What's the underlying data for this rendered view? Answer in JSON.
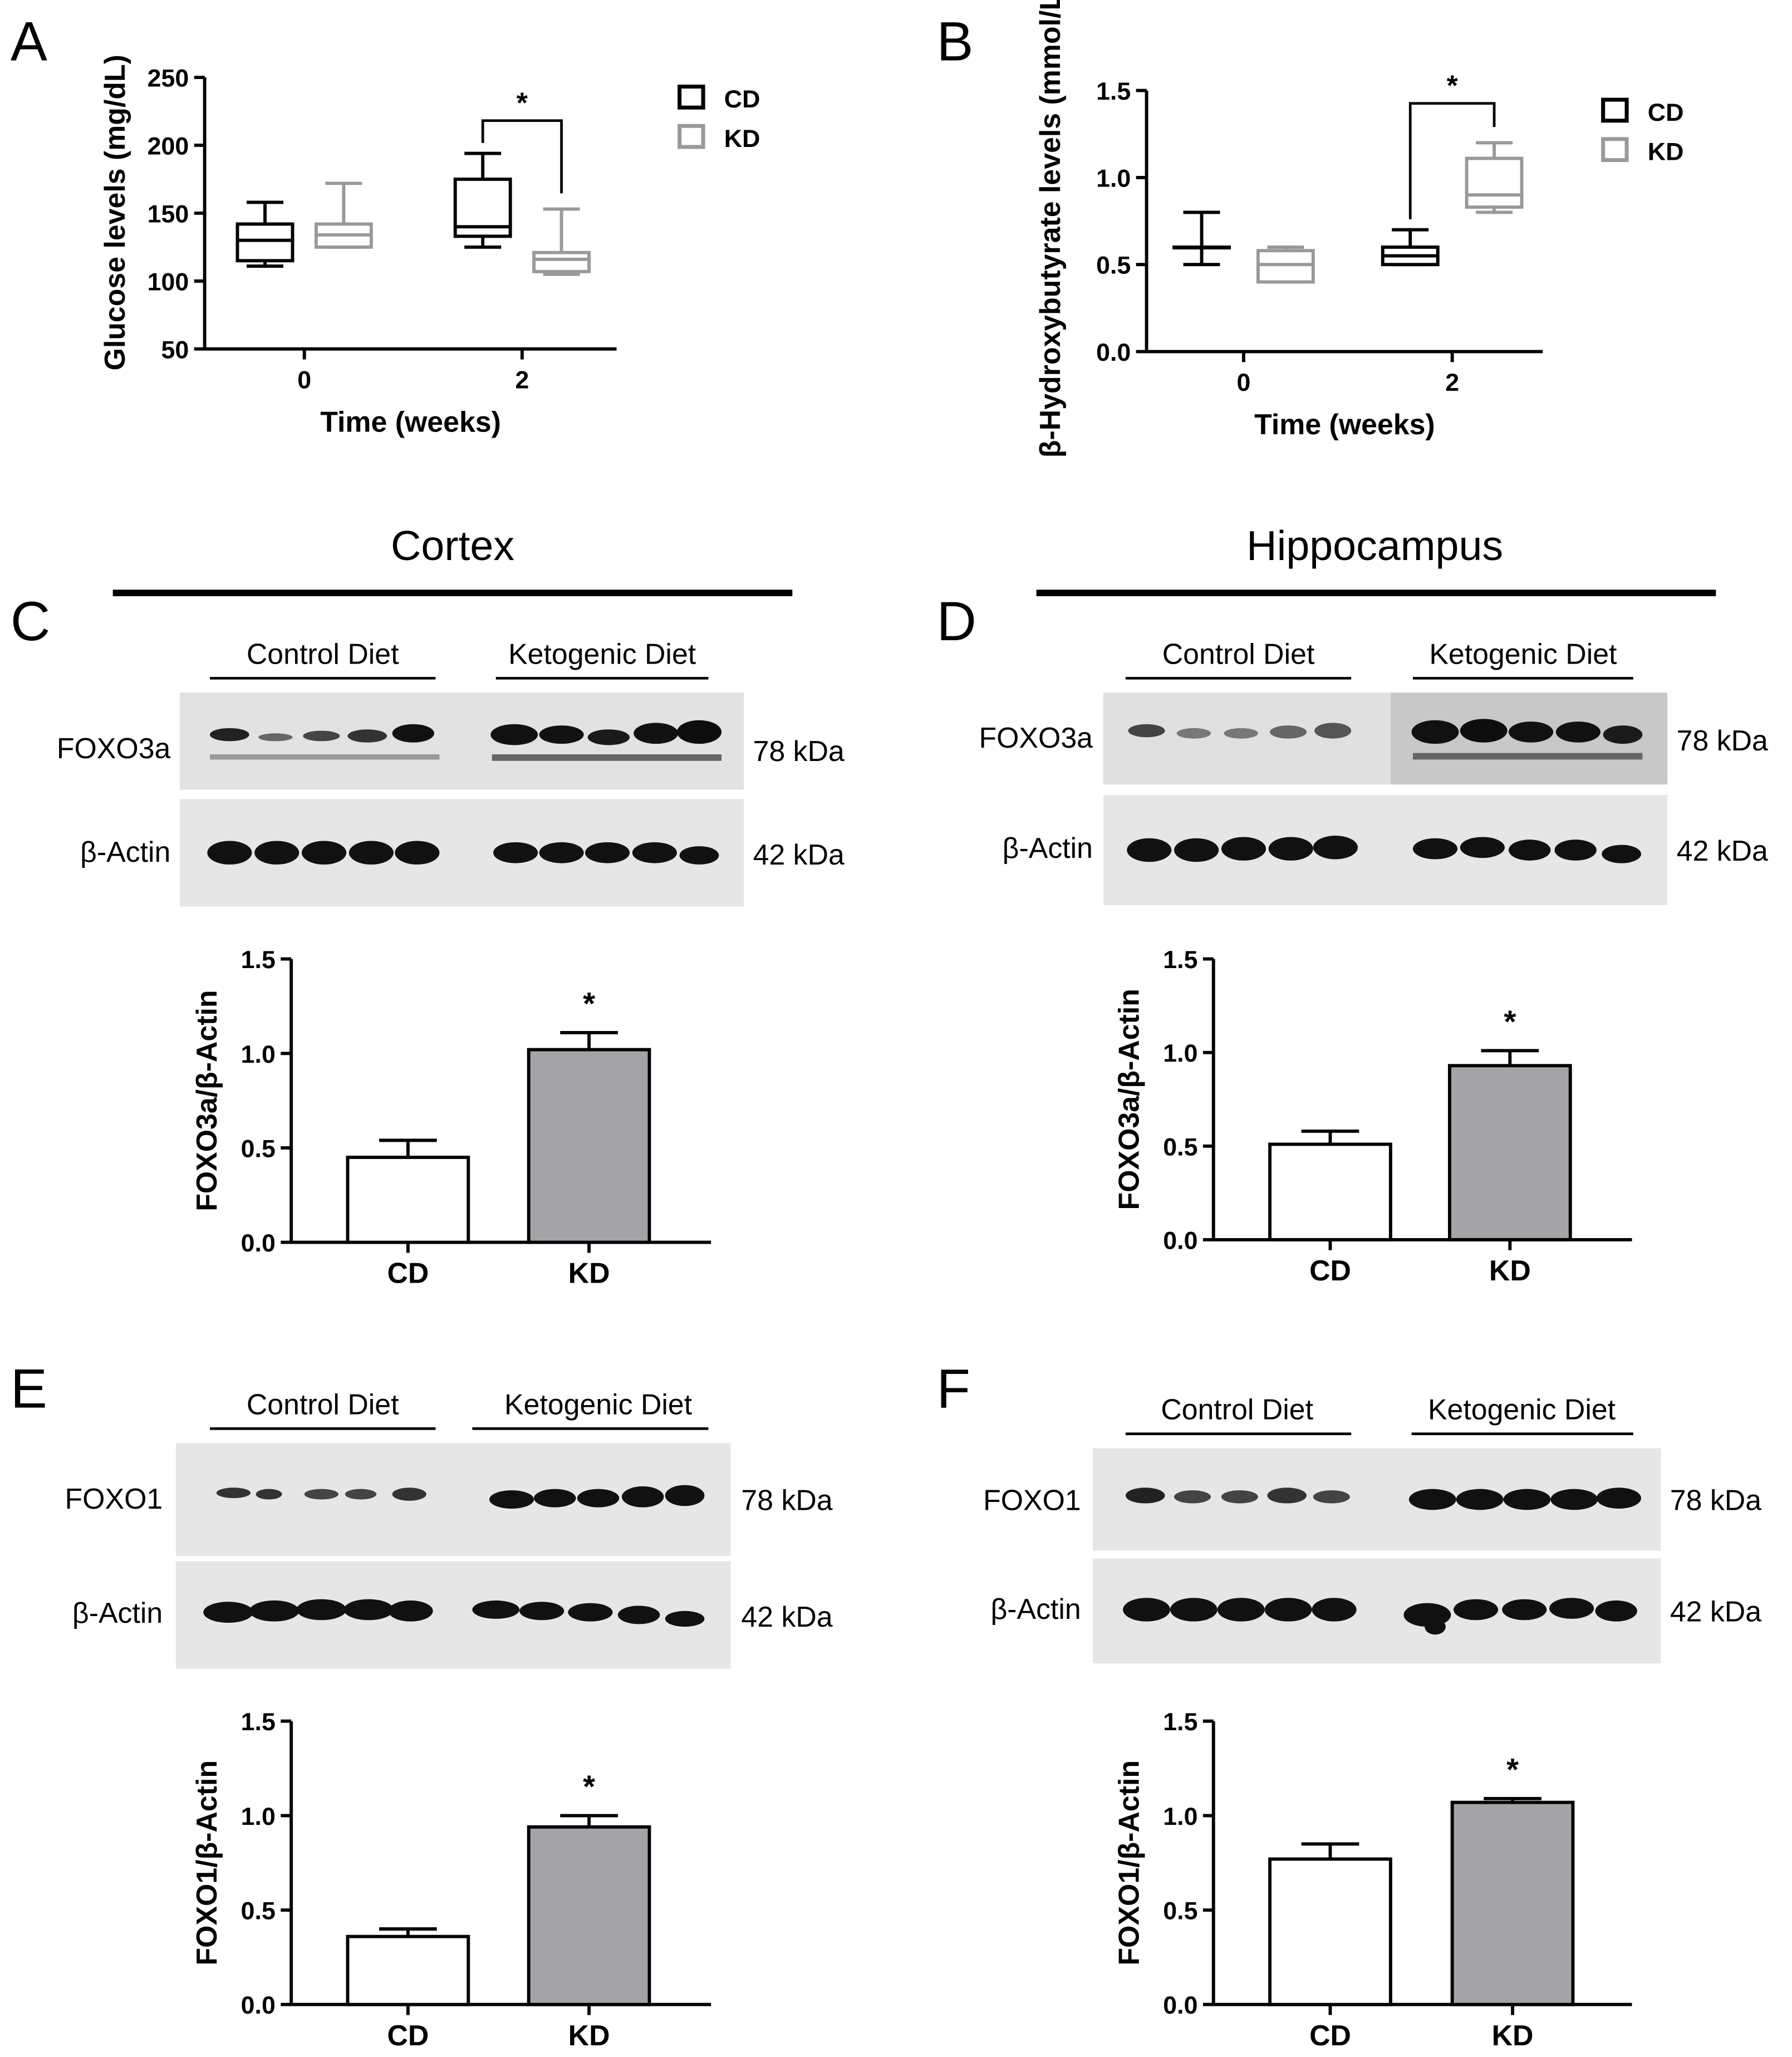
{
  "panels": {
    "A": "A",
    "B": "B",
    "C": "C",
    "D": "D",
    "E": "E",
    "F": "F"
  },
  "regions": {
    "cortex": "Cortex",
    "hippocampus": "Hippocampus"
  },
  "blots": {
    "control_label": "Control Diet",
    "keto_label": "Ketogenic Diet",
    "foxo3a": "FOXO3a",
    "foxo1": "FOXO1",
    "actin": "β-Actin",
    "kda78": "78 kDa",
    "kda42": "42 kDa"
  },
  "colors": {
    "cd": "#000000",
    "kd": "#999999",
    "kd_bar": "#a3a3a8",
    "blot_bg": "#e4e4e4"
  },
  "chart_data": [
    {
      "id": "A",
      "type": "box",
      "xlabel": "Time (weeks)",
      "ylabel": "Glucose levels (mg/dL)",
      "categories": [
        "0",
        "2"
      ],
      "ylim": [
        50,
        250
      ],
      "yticks": [
        50,
        100,
        150,
        200,
        250
      ],
      "legend": "top-right",
      "series": [
        {
          "name": "CD",
          "boxes": [
            {
              "min": 111,
              "q1": 115,
              "median": 130,
              "q3": 142,
              "max": 158
            },
            {
              "min": 125,
              "q1": 133,
              "median": 140,
              "q3": 175,
              "max": 194
            }
          ]
        },
        {
          "name": "KD",
          "boxes": [
            {
              "min": 125,
              "q1": 125,
              "median": 134,
              "q3": 142,
              "max": 172
            },
            {
              "min": 105,
              "q1": 107,
              "median": 116,
              "q3": 121,
              "max": 153
            }
          ]
        }
      ],
      "significance": {
        "group": "2",
        "label": "*"
      }
    },
    {
      "id": "B",
      "type": "box",
      "xlabel": "Time (weeks)",
      "ylabel": "β-Hydroxybutyrate levels (mmol/L)",
      "categories": [
        "0",
        "2"
      ],
      "ylim": [
        0.0,
        1.5
      ],
      "yticks": [
        0.0,
        0.5,
        1.0,
        1.5
      ],
      "legend": "top-right",
      "series": [
        {
          "name": "CD",
          "boxes": [
            {
              "min": 0.5,
              "q1": 0.6,
              "median": 0.6,
              "q3": 0.6,
              "max": 0.8
            },
            {
              "min": 0.5,
              "q1": 0.5,
              "median": 0.55,
              "q3": 0.6,
              "max": 0.7
            }
          ]
        },
        {
          "name": "KD",
          "boxes": [
            {
              "min": 0.4,
              "q1": 0.4,
              "median": 0.5,
              "q3": 0.58,
              "max": 0.6
            },
            {
              "min": 0.8,
              "q1": 0.83,
              "median": 0.9,
              "q3": 1.11,
              "max": 1.2
            }
          ]
        }
      ],
      "significance": {
        "group": "2",
        "label": "*"
      }
    },
    {
      "id": "C",
      "type": "bar",
      "ylabel": "FOXO3a/β-Actin",
      "categories": [
        "CD",
        "KD"
      ],
      "values": [
        0.45,
        1.02
      ],
      "errors": [
        0.09,
        0.09
      ],
      "ylim": [
        0.0,
        1.5
      ],
      "yticks": [
        0.0,
        0.5,
        1.0,
        1.5
      ],
      "significance": "*"
    },
    {
      "id": "D",
      "type": "bar",
      "ylabel": "FOXO3a/β-Actin",
      "categories": [
        "CD",
        "KD"
      ],
      "values": [
        0.51,
        0.93
      ],
      "errors": [
        0.07,
        0.08
      ],
      "ylim": [
        0.0,
        1.5
      ],
      "yticks": [
        0.0,
        0.5,
        1.0,
        1.5
      ],
      "significance": "*"
    },
    {
      "id": "E",
      "type": "bar",
      "ylabel": "FOXO1/β-Actin",
      "categories": [
        "CD",
        "KD"
      ],
      "values": [
        0.36,
        0.94
      ],
      "errors": [
        0.04,
        0.06
      ],
      "ylim": [
        0.0,
        1.5
      ],
      "yticks": [
        0.0,
        0.5,
        1.0,
        1.5
      ],
      "significance": "*"
    },
    {
      "id": "F",
      "type": "bar",
      "ylabel": "FOXO1/β-Actin",
      "categories": [
        "CD",
        "KD"
      ],
      "values": [
        0.77,
        1.07
      ],
      "errors": [
        0.08,
        0.02
      ],
      "ylim": [
        0.0,
        1.5
      ],
      "yticks": [
        0.0,
        0.5,
        1.0,
        1.5
      ],
      "significance": "*"
    }
  ]
}
